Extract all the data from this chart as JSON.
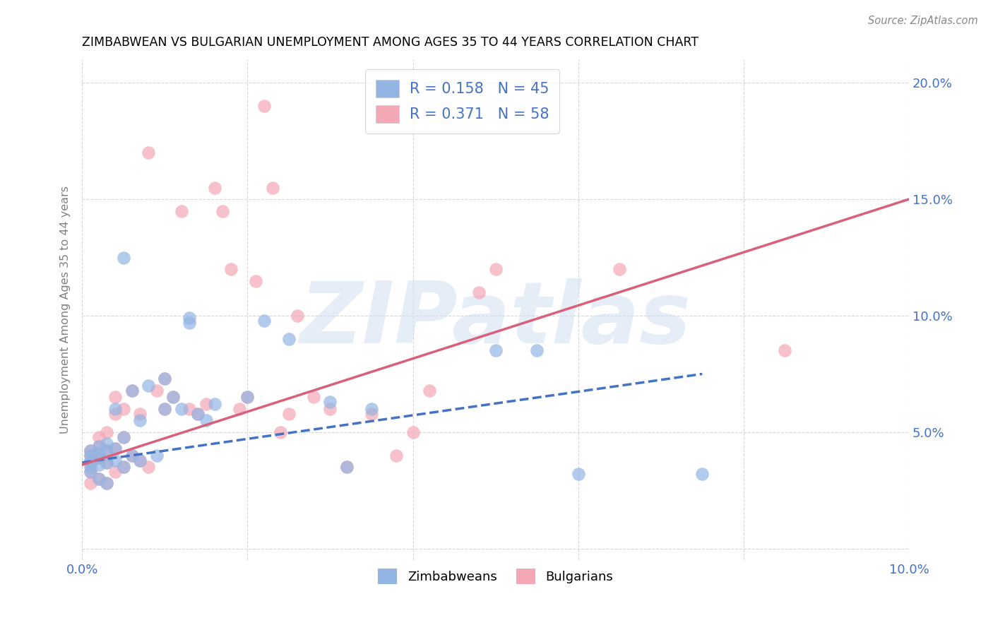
{
  "title": "ZIMBABWEAN VS BULGARIAN UNEMPLOYMENT AMONG AGES 35 TO 44 YEARS CORRELATION CHART",
  "source": "Source: ZipAtlas.com",
  "ylabel": "Unemployment Among Ages 35 to 44 years",
  "xlim": [
    0.0,
    0.1
  ],
  "ylim": [
    -0.005,
    0.21
  ],
  "xticks": [
    0.0,
    0.02,
    0.04,
    0.06,
    0.08,
    0.1
  ],
  "xticklabels": [
    "0.0%",
    "",
    "",
    "",
    "",
    "10.0%"
  ],
  "yticks": [
    0.0,
    0.05,
    0.1,
    0.15,
    0.2
  ],
  "yticklabels_left": [
    "",
    "",
    "",
    "",
    ""
  ],
  "yticklabels_right": [
    "",
    "5.0%",
    "10.0%",
    "15.0%",
    "20.0%"
  ],
  "zimbabwe_R": 0.158,
  "zimbabwe_N": 45,
  "bulgarian_R": 0.371,
  "bulgarian_N": 58,
  "zimbabwe_color": "#92b4e3",
  "bulgarian_color": "#f4a7b5",
  "zimbabwe_line_color": "#4472c4",
  "bulgarian_line_color": "#d9607a",
  "legend_label_zim": "Zimbabweans",
  "legend_label_bul": "Bulgarians",
  "watermark": "ZIPatlas",
  "background_color": "#ffffff",
  "grid_color": "#cccccc",
  "title_color": "#000000",
  "axis_label_color": "#4472c4",
  "source_color": "#888888",
  "zim_line_y0": 0.037,
  "zim_line_y1": 0.092,
  "bul_line_y0": 0.036,
  "bul_line_y1": 0.15,
  "zim_x": [
    0.001,
    0.001,
    0.001,
    0.001,
    0.001,
    0.002,
    0.002,
    0.002,
    0.002,
    0.002,
    0.003,
    0.003,
    0.003,
    0.003,
    0.004,
    0.004,
    0.004,
    0.005,
    0.005,
    0.006,
    0.006,
    0.007,
    0.007,
    0.008,
    0.009,
    0.01,
    0.01,
    0.011,
    0.012,
    0.013,
    0.013,
    0.014,
    0.015,
    0.016,
    0.02,
    0.022,
    0.025,
    0.03,
    0.032,
    0.035,
    0.05,
    0.055,
    0.06,
    0.075,
    0.005
  ],
  "zim_y": [
    0.035,
    0.038,
    0.04,
    0.042,
    0.033,
    0.036,
    0.039,
    0.041,
    0.044,
    0.03,
    0.037,
    0.042,
    0.045,
    0.028,
    0.038,
    0.043,
    0.06,
    0.035,
    0.048,
    0.04,
    0.068,
    0.038,
    0.055,
    0.07,
    0.04,
    0.06,
    0.073,
    0.065,
    0.06,
    0.097,
    0.099,
    0.058,
    0.055,
    0.062,
    0.065,
    0.098,
    0.09,
    0.063,
    0.035,
    0.06,
    0.085,
    0.085,
    0.032,
    0.032,
    0.125
  ],
  "bul_x": [
    0.001,
    0.001,
    0.001,
    0.001,
    0.001,
    0.001,
    0.002,
    0.002,
    0.002,
    0.002,
    0.002,
    0.003,
    0.003,
    0.003,
    0.003,
    0.004,
    0.004,
    0.004,
    0.004,
    0.005,
    0.005,
    0.005,
    0.006,
    0.006,
    0.007,
    0.007,
    0.008,
    0.008,
    0.009,
    0.01,
    0.01,
    0.011,
    0.012,
    0.013,
    0.014,
    0.015,
    0.016,
    0.017,
    0.018,
    0.019,
    0.02,
    0.021,
    0.022,
    0.023,
    0.024,
    0.025,
    0.026,
    0.028,
    0.03,
    0.032,
    0.035,
    0.038,
    0.04,
    0.042,
    0.048,
    0.05,
    0.065,
    0.085
  ],
  "bul_y": [
    0.038,
    0.04,
    0.042,
    0.033,
    0.036,
    0.028,
    0.039,
    0.041,
    0.044,
    0.03,
    0.048,
    0.037,
    0.042,
    0.05,
    0.028,
    0.058,
    0.043,
    0.033,
    0.065,
    0.035,
    0.048,
    0.06,
    0.04,
    0.068,
    0.038,
    0.058,
    0.17,
    0.035,
    0.068,
    0.06,
    0.073,
    0.065,
    0.145,
    0.06,
    0.058,
    0.062,
    0.155,
    0.145,
    0.12,
    0.06,
    0.065,
    0.115,
    0.19,
    0.155,
    0.05,
    0.058,
    0.1,
    0.065,
    0.06,
    0.035,
    0.058,
    0.04,
    0.05,
    0.068,
    0.11,
    0.12,
    0.12,
    0.085
  ]
}
